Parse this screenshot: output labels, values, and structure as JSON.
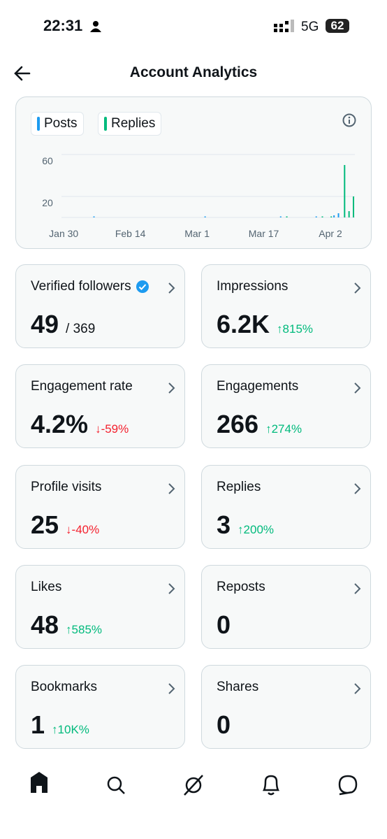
{
  "status_bar": {
    "time": "22:31",
    "network": "5G",
    "battery": "62"
  },
  "header": {
    "title": "Account Analytics"
  },
  "chart_data": {
    "type": "bar",
    "categories": [
      "Jan 30",
      null,
      null,
      null,
      null,
      null,
      null,
      null,
      null,
      null,
      null,
      null,
      null,
      null,
      null,
      "Feb 14",
      null,
      null,
      null,
      null,
      null,
      null,
      null,
      null,
      null,
      null,
      null,
      null,
      null,
      null,
      "Mar 1",
      null,
      null,
      null,
      null,
      null,
      null,
      null,
      null,
      null,
      null,
      null,
      null,
      null,
      null,
      "Mar 17",
      null,
      null,
      null,
      null,
      null,
      null,
      null,
      null,
      null,
      null,
      null,
      null,
      null,
      null,
      "Apr 2",
      null,
      null,
      null,
      null,
      null
    ],
    "series": [
      {
        "name": "Posts",
        "color": "#1d9bf0",
        "values": [
          0,
          0,
          0,
          0,
          0,
          0,
          0,
          1,
          0,
          0,
          0,
          0,
          0,
          0,
          0,
          0,
          0,
          0,
          0,
          0,
          0,
          0,
          0,
          0,
          0,
          0,
          0,
          0,
          0,
          0,
          0,
          0,
          1,
          0,
          0,
          0,
          0,
          0,
          0,
          0,
          0,
          0,
          0,
          0,
          0,
          0,
          0,
          0,
          0,
          1,
          0,
          0,
          0,
          0,
          0,
          0,
          0,
          1,
          0,
          0,
          0,
          2,
          4,
          0,
          0,
          0
        ]
      },
      {
        "name": "Replies",
        "color": "#00ba7c",
        "values": [
          0,
          0,
          0,
          0,
          0,
          0,
          0,
          0,
          0,
          0,
          0,
          0,
          0,
          0,
          0,
          0,
          0,
          0,
          0,
          0,
          0,
          0,
          0,
          0,
          0,
          0,
          0,
          0,
          0,
          0,
          0,
          0,
          0,
          0,
          0,
          0,
          0,
          0,
          0,
          0,
          0,
          0,
          0,
          0,
          0,
          0,
          0,
          0,
          0,
          0,
          1,
          0,
          0,
          0,
          0,
          0,
          0,
          0,
          1,
          0,
          1,
          0,
          0,
          50,
          6,
          20
        ]
      }
    ],
    "ylim": [
      0,
      60
    ],
    "yticks": [
      20,
      60
    ],
    "grid": true
  },
  "cards": [
    {
      "label": "Verified followers",
      "verified": true,
      "value": "49",
      "total": "/ 369"
    },
    {
      "label": "Impressions",
      "value": "6.2K",
      "change": "↑815%",
      "change_color": "#00ba7c"
    },
    {
      "label": "Engagement rate",
      "value": "4.2%",
      "change": "↓-59%",
      "change_color": "#f4212e"
    },
    {
      "label": "Engagements",
      "value": "266",
      "change": "↑274%",
      "change_color": "#00ba7c"
    },
    {
      "label": "Profile visits",
      "value": "25",
      "change": "↓-40%",
      "change_color": "#f4212e"
    },
    {
      "label": "Replies",
      "value": "3",
      "change": "↑200%",
      "change_color": "#00ba7c"
    },
    {
      "label": "Likes",
      "value": "48",
      "change": "↑585%",
      "change_color": "#00ba7c"
    },
    {
      "label": "Reposts",
      "value": "0"
    },
    {
      "label": "Bookmarks",
      "value": "1",
      "change": "↑10K%",
      "change_color": "#00ba7c"
    },
    {
      "label": "Shares",
      "value": "0"
    }
  ]
}
